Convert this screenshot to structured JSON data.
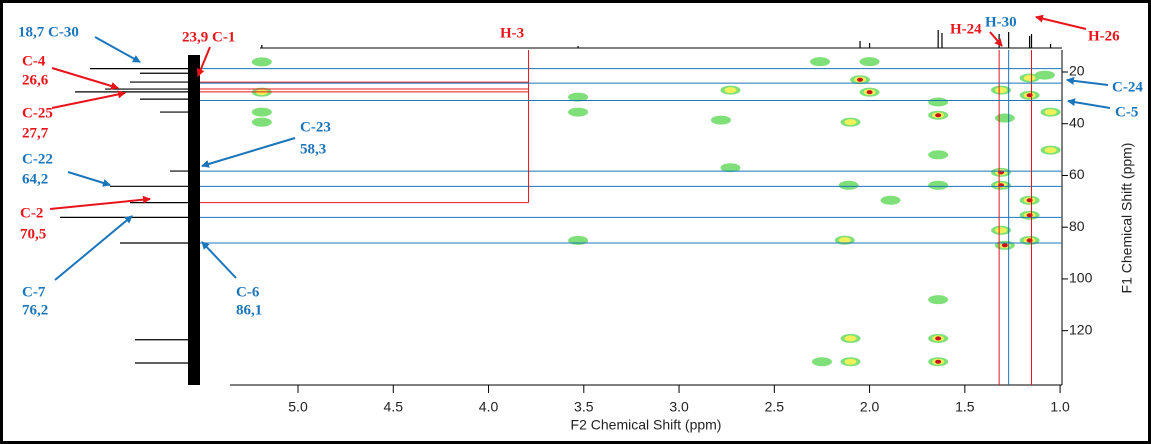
{
  "chart_data": {
    "type": "contour",
    "x_label": "F2 Chemical Shift (ppm)",
    "y_label": "F1 Chemical Shift (ppm)",
    "xlim": [
      5.357,
      0.99
    ],
    "ylim": [
      11.5,
      141
    ],
    "xticks": [
      {
        "value": 5,
        "label": "5.0"
      },
      {
        "value": 4.5,
        "label": "4.5"
      },
      {
        "value": 4,
        "label": "4.0"
      },
      {
        "value": 3.5,
        "label": "3.5"
      },
      {
        "value": 3,
        "label": "3.0"
      },
      {
        "value": 2.5,
        "label": "2.5"
      },
      {
        "value": 2,
        "label": "2.0"
      },
      {
        "value": 1.5,
        "label": "1.5"
      },
      {
        "value": 1,
        "label": "1.0"
      }
    ],
    "yticks": [
      20,
      40,
      60,
      80,
      100,
      120
    ],
    "x": [
      5.19,
      5.19,
      5.19,
      5.19,
      3.53,
      3.53,
      3.53,
      2.73,
      2.73,
      2.78,
      2.0,
      2.05,
      2.0,
      2.1,
      2.26,
      2.11,
      2.13,
      1.89,
      2.1,
      2.1,
      2.25,
      1.64,
      1.64,
      1.64,
      1.64,
      1.64,
      1.64,
      1.64,
      1.31,
      1.31,
      1.31,
      1.31,
      1.29,
      1.16,
      1.16,
      1.16,
      1.16,
      1.16,
      1.08,
      1.05,
      1.05,
      1.29
    ],
    "y": [
      16.1,
      27.8,
      35.5,
      39.4,
      29.7,
      35.5,
      85.1,
      27,
      57,
      38.6,
      16,
      23,
      27.8,
      39.4,
      16,
      63.8,
      85,
      69.6,
      123,
      132,
      132,
      31.6,
      36.7,
      52,
      63.8,
      123,
      132,
      108,
      27,
      58.8,
      63.8,
      81.2,
      87,
      22.3,
      29,
      69.6,
      75.4,
      85.1,
      21.2,
      35.5,
      50.2,
      37.8
    ],
    "z": [
      1,
      2,
      1,
      1,
      1,
      1,
      1,
      2,
      1,
      1,
      1,
      3,
      3,
      2,
      1,
      1,
      2,
      1,
      2,
      2,
      1,
      1,
      3,
      1,
      1,
      3,
      3,
      1,
      2,
      3,
      3,
      2,
      3,
      2,
      3,
      3,
      3,
      3,
      1,
      2,
      2,
      1
    ],
    "level_colors": [
      "#7fe07a",
      "#f0f05a",
      "#c8141c"
    ],
    "f1_projection": {
      "ppm": [
        18.7,
        20.5,
        23.9,
        26.6,
        27.7,
        30.5,
        35.5,
        58.3,
        64.2,
        70.5,
        76.2,
        86.1,
        123.5,
        132.5
      ],
      "intensity": [
        110,
        60,
        70,
        95,
        125,
        60,
        40,
        30,
        90,
        70,
        140,
        80,
        65,
        65
      ]
    },
    "f2_projection": {
      "ppm": [
        5.19,
        3.53,
        2.05,
        2.0,
        1.64,
        1.62,
        1.32,
        1.27,
        1.16,
        1.15,
        1.05
      ],
      "intensity": [
        3,
        2,
        7,
        5,
        18,
        15,
        14,
        16,
        12,
        14,
        4
      ]
    },
    "annotations": [
      {
        "text": [
          "18,7 C-30"
        ],
        "color": "#1b75bb",
        "f1": 18.7
      },
      {
        "text": [
          "23,9 C-1"
        ],
        "color": "#e8141c",
        "f1": 23.9
      },
      {
        "text": [
          "C-4",
          "26,6"
        ],
        "color": "#e8141c",
        "f1": 26.6
      },
      {
        "text": [
          "C-25",
          "27,7"
        ],
        "color": "#e8141c",
        "f1": 27.7
      },
      {
        "text": [
          "C-23",
          "58,3"
        ],
        "color": "#1b75bb",
        "f1": 58.3
      },
      {
        "text": [
          "C-22",
          "64,2"
        ],
        "color": "#1b75bb",
        "f1": 64.2
      },
      {
        "text": [
          "C-2",
          "70,5"
        ],
        "color": "#e8141c",
        "f1": 70.5
      },
      {
        "text": [
          "C-7",
          "76,2"
        ],
        "color": "#1b75bb",
        "f1": 76.2
      },
      {
        "text": [
          "C-6",
          "86,1"
        ],
        "color": "#1b75bb",
        "f1": 86.1
      },
      {
        "text": [
          "H-3"
        ],
        "color": "#e8141c",
        "f2": 3.79
      },
      {
        "text": [
          "H-24"
        ],
        "color": "#e8141c",
        "f2": 1.32
      },
      {
        "text": [
          "H-30"
        ],
        "color": "#1b75bb",
        "f2": 1.27
      },
      {
        "text": [
          "H-26"
        ],
        "color": "#e8141c",
        "f2": 1.15
      },
      {
        "text": [
          "C-24"
        ],
        "color": "#1b75bb",
        "f1": 24.3
      },
      {
        "text": [
          "C-5"
        ],
        "color": "#1b75bb",
        "f1": 31
      }
    ]
  }
}
